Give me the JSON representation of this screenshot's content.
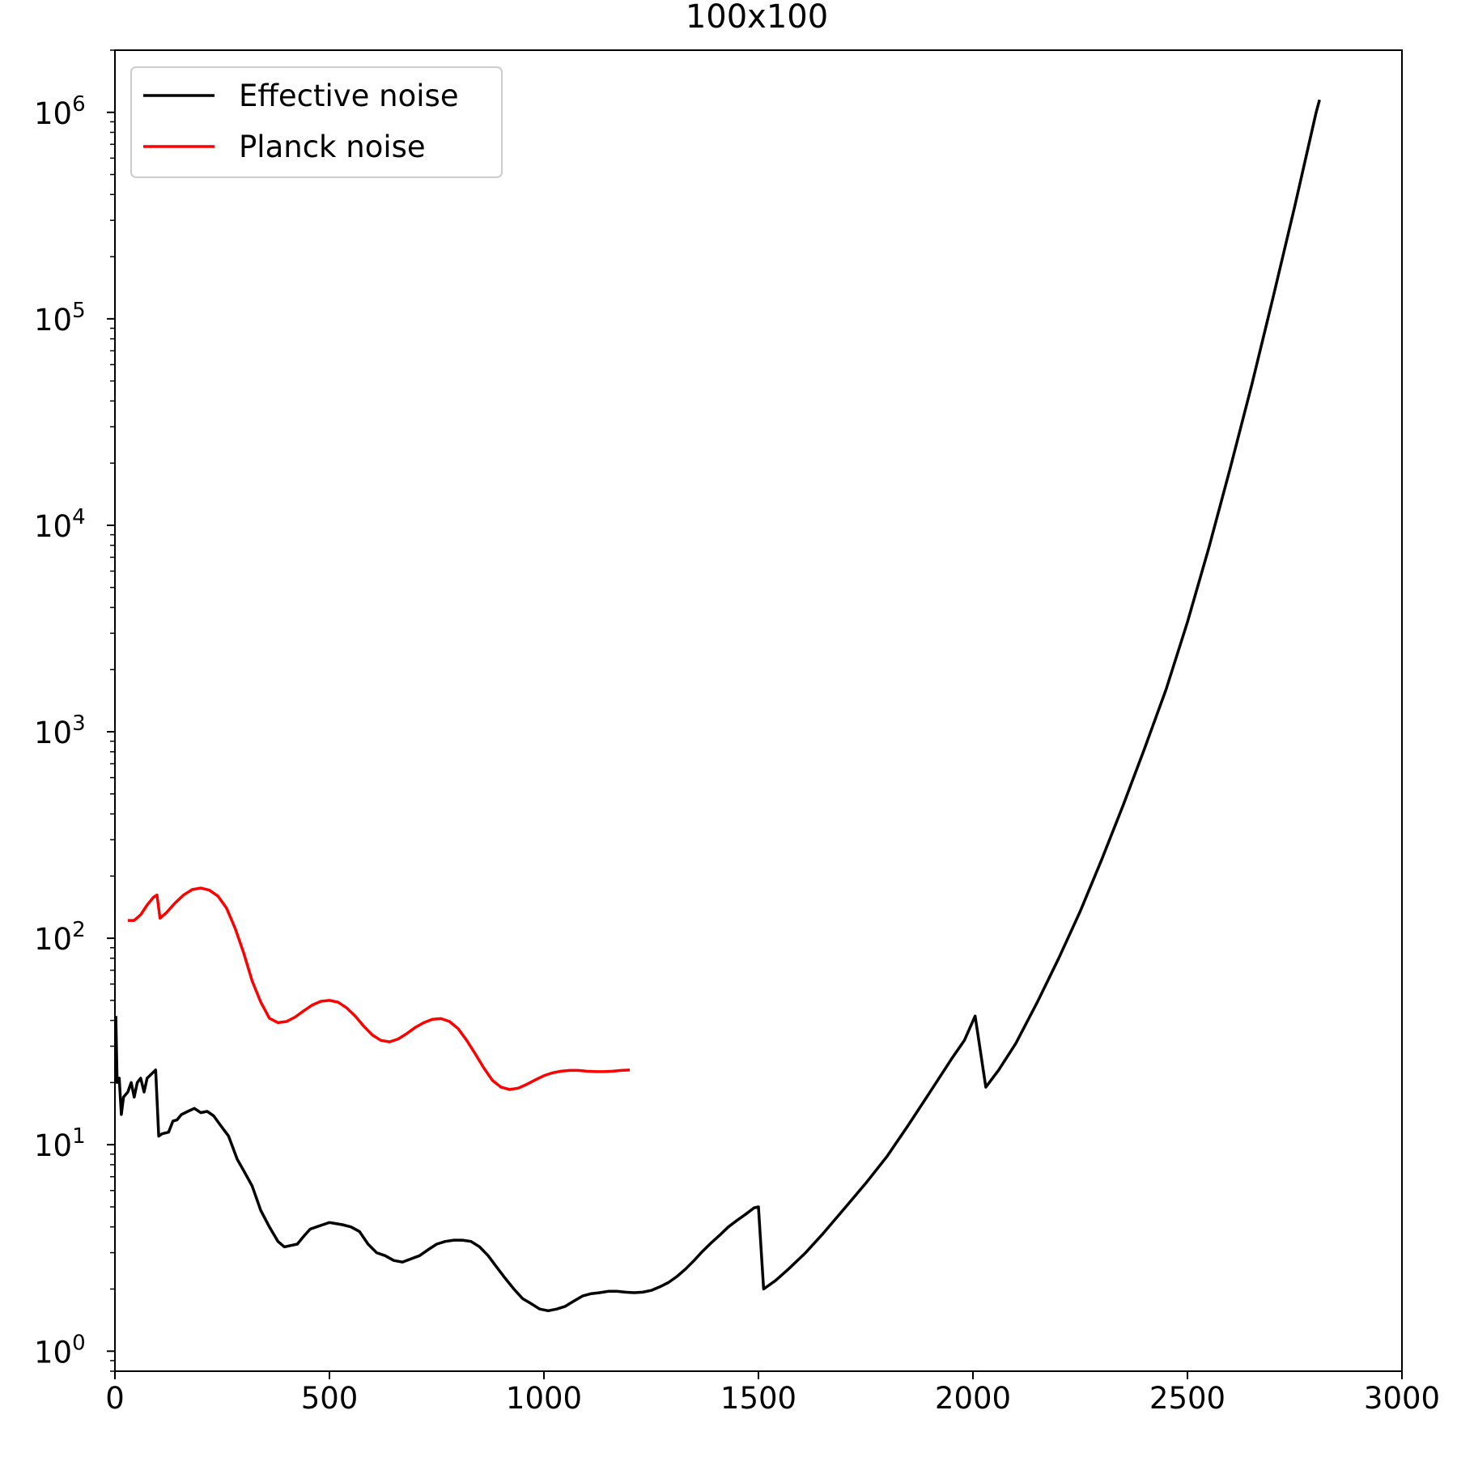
{
  "chart_data": {
    "type": "line",
    "title": "100x100",
    "xlabel": "",
    "ylabel": "",
    "xlim": [
      0,
      3000
    ],
    "ylim": [
      0.8,
      2000000
    ],
    "yscale": "log",
    "grid": false,
    "legend_position": "top-left",
    "x_ticks": [
      {
        "value": 0,
        "label": "0"
      },
      {
        "value": 500,
        "label": "500"
      },
      {
        "value": 1000,
        "label": "1000"
      },
      {
        "value": 1500,
        "label": "1500"
      },
      {
        "value": 2000,
        "label": "2000"
      },
      {
        "value": 2500,
        "label": "2500"
      },
      {
        "value": 3000,
        "label": "3000"
      }
    ],
    "y_ticks": [
      {
        "exp": 0,
        "label_base": "10",
        "label_exp": "0"
      },
      {
        "exp": 1,
        "label_base": "10",
        "label_exp": "1"
      },
      {
        "exp": 2,
        "label_base": "10",
        "label_exp": "2"
      },
      {
        "exp": 3,
        "label_base": "10",
        "label_exp": "3"
      },
      {
        "exp": 4,
        "label_base": "10",
        "label_exp": "4"
      },
      {
        "exp": 5,
        "label_base": "10",
        "label_exp": "5"
      },
      {
        "exp": 6,
        "label_base": "10",
        "label_exp": "6"
      }
    ],
    "series": [
      {
        "name": "Effective noise",
        "color": "#000000",
        "points": [
          [
            2,
            42
          ],
          [
            5,
            20
          ],
          [
            10,
            21
          ],
          [
            15,
            14
          ],
          [
            20,
            17
          ],
          [
            30,
            18
          ],
          [
            38,
            20
          ],
          [
            45,
            17
          ],
          [
            52,
            20
          ],
          [
            60,
            21
          ],
          [
            68,
            18
          ],
          [
            75,
            21
          ],
          [
            85,
            22
          ],
          [
            95,
            23
          ],
          [
            102,
            11
          ],
          [
            110,
            11.3
          ],
          [
            125,
            11.5
          ],
          [
            135,
            13
          ],
          [
            145,
            13.2
          ],
          [
            155,
            14
          ],
          [
            170,
            14.5
          ],
          [
            185,
            15
          ],
          [
            200,
            14.3
          ],
          [
            215,
            14.5
          ],
          [
            230,
            13.8
          ],
          [
            245,
            12.5
          ],
          [
            265,
            11
          ],
          [
            285,
            8.5
          ],
          [
            300,
            7.5
          ],
          [
            320,
            6.3
          ],
          [
            340,
            4.8
          ],
          [
            360,
            4.0
          ],
          [
            380,
            3.4
          ],
          [
            395,
            3.2
          ],
          [
            410,
            3.25
          ],
          [
            425,
            3.3
          ],
          [
            440,
            3.6
          ],
          [
            455,
            3.9
          ],
          [
            470,
            4.0
          ],
          [
            485,
            4.1
          ],
          [
            500,
            4.2
          ],
          [
            515,
            4.15
          ],
          [
            530,
            4.1
          ],
          [
            550,
            4.0
          ],
          [
            570,
            3.8
          ],
          [
            590,
            3.3
          ],
          [
            610,
            3.0
          ],
          [
            630,
            2.9
          ],
          [
            650,
            2.75
          ],
          [
            670,
            2.7
          ],
          [
            690,
            2.8
          ],
          [
            710,
            2.9
          ],
          [
            730,
            3.1
          ],
          [
            750,
            3.3
          ],
          [
            770,
            3.4
          ],
          [
            790,
            3.45
          ],
          [
            810,
            3.45
          ],
          [
            830,
            3.4
          ],
          [
            850,
            3.2
          ],
          [
            870,
            2.9
          ],
          [
            890,
            2.55
          ],
          [
            910,
            2.25
          ],
          [
            930,
            2.0
          ],
          [
            950,
            1.8
          ],
          [
            970,
            1.7
          ],
          [
            990,
            1.6
          ],
          [
            1010,
            1.57
          ],
          [
            1030,
            1.6
          ],
          [
            1050,
            1.65
          ],
          [
            1070,
            1.75
          ],
          [
            1090,
            1.85
          ],
          [
            1110,
            1.9
          ],
          [
            1130,
            1.92
          ],
          [
            1150,
            1.95
          ],
          [
            1170,
            1.95
          ],
          [
            1190,
            1.93
          ],
          [
            1210,
            1.92
          ],
          [
            1230,
            1.93
          ],
          [
            1250,
            1.97
          ],
          [
            1270,
            2.05
          ],
          [
            1290,
            2.15
          ],
          [
            1310,
            2.3
          ],
          [
            1330,
            2.5
          ],
          [
            1350,
            2.75
          ],
          [
            1370,
            3.05
          ],
          [
            1390,
            3.35
          ],
          [
            1410,
            3.65
          ],
          [
            1430,
            4.0
          ],
          [
            1450,
            4.3
          ],
          [
            1470,
            4.6
          ],
          [
            1490,
            4.95
          ],
          [
            1500,
            5.0
          ],
          [
            1512,
            2.0
          ],
          [
            1540,
            2.2
          ],
          [
            1570,
            2.5
          ],
          [
            1610,
            3.0
          ],
          [
            1650,
            3.7
          ],
          [
            1700,
            4.9
          ],
          [
            1750,
            6.5
          ],
          [
            1800,
            8.8
          ],
          [
            1850,
            12.5
          ],
          [
            1900,
            18
          ],
          [
            1950,
            26
          ],
          [
            1980,
            32
          ],
          [
            2005,
            42
          ],
          [
            2030,
            19
          ],
          [
            2060,
            23
          ],
          [
            2100,
            31
          ],
          [
            2150,
            49
          ],
          [
            2200,
            80
          ],
          [
            2250,
            135
          ],
          [
            2300,
            240
          ],
          [
            2350,
            440
          ],
          [
            2400,
            830
          ],
          [
            2450,
            1600
          ],
          [
            2500,
            3400
          ],
          [
            2550,
            7800
          ],
          [
            2600,
            19000
          ],
          [
            2650,
            48000
          ],
          [
            2700,
            128000
          ],
          [
            2750,
            350000
          ],
          [
            2800,
            1000000
          ],
          [
            2808,
            1150000
          ]
        ]
      },
      {
        "name": "Planck noise",
        "color": "#ff0000",
        "points": [
          [
            30,
            122
          ],
          [
            45,
            122
          ],
          [
            60,
            130
          ],
          [
            75,
            145
          ],
          [
            90,
            158
          ],
          [
            98,
            162
          ],
          [
            105,
            125
          ],
          [
            120,
            133
          ],
          [
            140,
            148
          ],
          [
            160,
            162
          ],
          [
            180,
            172
          ],
          [
            200,
            175
          ],
          [
            220,
            171
          ],
          [
            240,
            160
          ],
          [
            260,
            140
          ],
          [
            280,
            112
          ],
          [
            300,
            85
          ],
          [
            320,
            62
          ],
          [
            340,
            49
          ],
          [
            360,
            41
          ],
          [
            380,
            39
          ],
          [
            400,
            39.5
          ],
          [
            420,
            41.5
          ],
          [
            440,
            44.5
          ],
          [
            460,
            47.5
          ],
          [
            480,
            49.5
          ],
          [
            500,
            50
          ],
          [
            520,
            49
          ],
          [
            540,
            46
          ],
          [
            560,
            42
          ],
          [
            580,
            37.5
          ],
          [
            600,
            34
          ],
          [
            620,
            32
          ],
          [
            640,
            31.5
          ],
          [
            660,
            32.5
          ],
          [
            680,
            34.5
          ],
          [
            700,
            37
          ],
          [
            720,
            39
          ],
          [
            740,
            40.5
          ],
          [
            760,
            40.8
          ],
          [
            780,
            39.5
          ],
          [
            800,
            36.5
          ],
          [
            820,
            32
          ],
          [
            840,
            27.5
          ],
          [
            860,
            23.5
          ],
          [
            880,
            20.5
          ],
          [
            900,
            19
          ],
          [
            920,
            18.5
          ],
          [
            940,
            18.8
          ],
          [
            960,
            19.6
          ],
          [
            980,
            20.6
          ],
          [
            1000,
            21.6
          ],
          [
            1020,
            22.3
          ],
          [
            1040,
            22.7
          ],
          [
            1060,
            22.9
          ],
          [
            1080,
            22.9
          ],
          [
            1100,
            22.7
          ],
          [
            1120,
            22.6
          ],
          [
            1140,
            22.6
          ],
          [
            1160,
            22.7
          ],
          [
            1180,
            22.9
          ],
          [
            1200,
            23.0
          ]
        ]
      }
    ]
  }
}
